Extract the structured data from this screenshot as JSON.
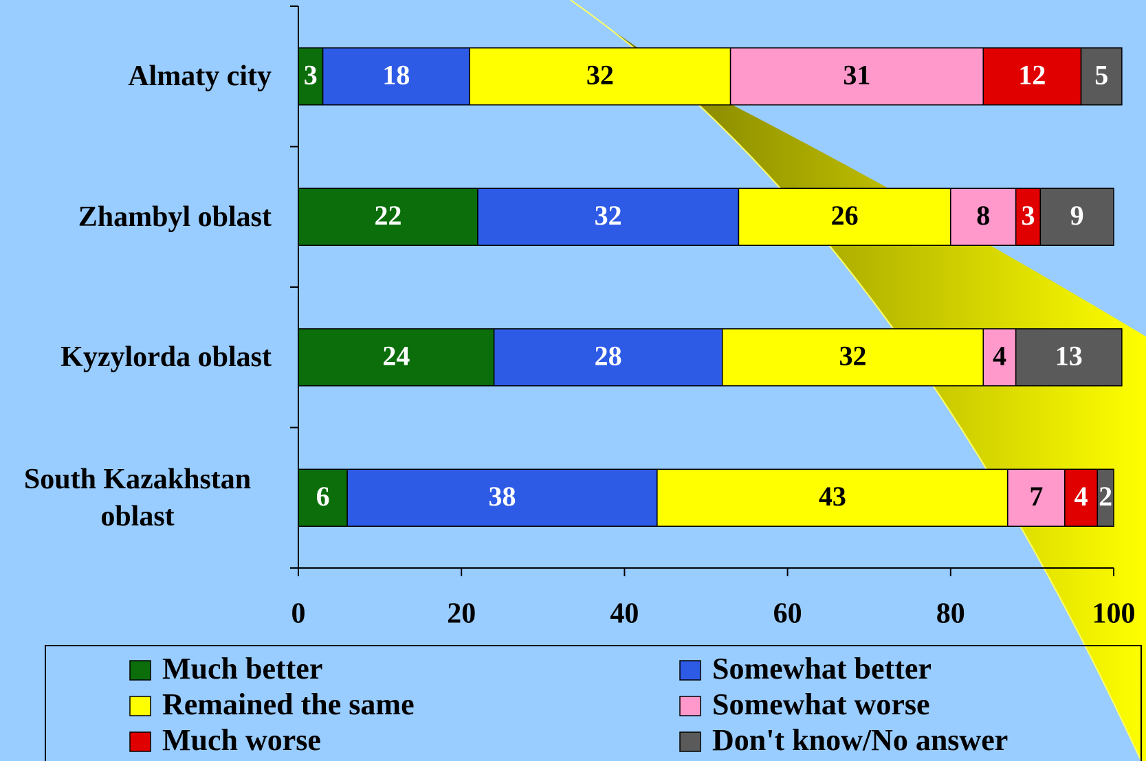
{
  "chart_data": {
    "type": "stacked-bar-horizontal",
    "categories": [
      "Almaty city",
      "Zhambyl oblast",
      "Kyzylorda oblast",
      "South Kazakhstan oblast"
    ],
    "series": [
      {
        "name": "Much better",
        "color": "#0b6e0b",
        "values": [
          3,
          22,
          24,
          6
        ]
      },
      {
        "name": "Somewhat better",
        "color": "#2e5be6",
        "values": [
          18,
          32,
          28,
          38
        ]
      },
      {
        "name": "Remained the same",
        "color": "#ffff00",
        "values": [
          32,
          26,
          32,
          43
        ]
      },
      {
        "name": "Somewhat worse",
        "color": "#ff99cc",
        "values": [
          31,
          8,
          4,
          7
        ]
      },
      {
        "name": "Much worse",
        "color": "#e00000",
        "values": [
          12,
          3,
          null,
          4
        ]
      },
      {
        "name": "Don't know/No answer",
        "color": "#5a5a5a",
        "values": [
          5,
          9,
          13,
          2
        ]
      }
    ],
    "xlim": [
      0,
      100
    ],
    "xticks": [
      0,
      20,
      40,
      60,
      80,
      100
    ]
  }
}
